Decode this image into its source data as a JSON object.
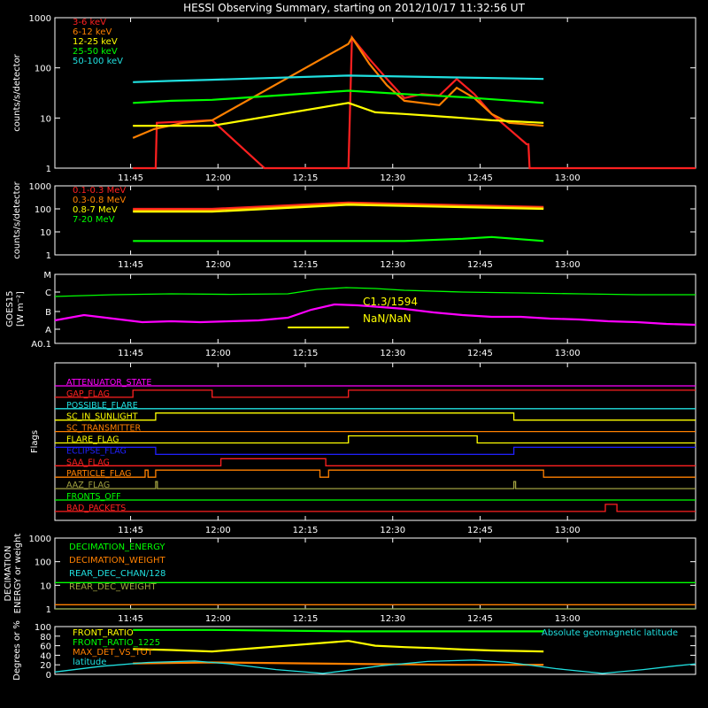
{
  "title": "HESSI Observing Summary, starting on 2012/10/17 11:32:56 UT",
  "colors": {
    "background": "#000000",
    "axis": "#ffffff",
    "red": "#ff2020",
    "orange": "#ff8000",
    "yellow": "#ffff00",
    "green": "#00ff00",
    "cyan": "#20e0e0",
    "magenta": "#ff00ff",
    "blue": "#2020ff",
    "olive": "#a0a040",
    "darkred": "#ff3030"
  },
  "time_axis": {
    "range_minutes_since_1132": [
      0,
      110
    ],
    "tick_labels": [
      "11:45",
      "12:00",
      "12:15",
      "12:30",
      "12:45",
      "13:00"
    ],
    "tick_minutes": [
      13,
      28,
      43,
      58,
      73,
      88
    ]
  },
  "chart_data": [
    {
      "type": "line",
      "name": "count-rates",
      "ylabel": "counts/s/detector",
      "yscale": "log",
      "ylim": [
        1,
        1000
      ],
      "y_tick_labels": [
        "1",
        "10",
        "100",
        "1000"
      ],
      "y_tick_values": [
        1,
        10,
        100,
        1000
      ],
      "series": [
        {
          "name": "3-6 keV",
          "color": "red",
          "x": [
            13.4,
            17.3,
            17.5,
            27.0,
            36,
            50.4,
            51,
            54,
            57,
            60,
            63,
            66,
            69,
            72,
            75,
            78,
            81,
            81.3,
            81.5,
            110
          ],
          "y": [
            1,
            1,
            8,
            9,
            1,
            1,
            400,
            150,
            60,
            25,
            30,
            28,
            60,
            30,
            12,
            6,
            3,
            3,
            1,
            1
          ]
        },
        {
          "name": "6-12 keV",
          "color": "orange",
          "x": [
            13.4,
            17.0,
            22,
            27.0,
            50.4,
            51,
            54,
            57,
            60,
            63,
            66,
            69,
            72,
            75,
            78,
            83.9
          ],
          "y": [
            4,
            6,
            8,
            9,
            300,
            400,
            120,
            45,
            22,
            20,
            18,
            40,
            25,
            12,
            8,
            7
          ]
        },
        {
          "name": "12-25 keV",
          "color": "yellow",
          "x": [
            13.4,
            20,
            27.0,
            50.4,
            55,
            60,
            65,
            70,
            75,
            83.9
          ],
          "y": [
            7.0,
            7.0,
            7.0,
            20,
            13,
            12,
            11,
            10,
            9,
            8
          ]
        },
        {
          "name": "25-50 keV",
          "color": "green",
          "x": [
            13.4,
            20,
            27.0,
            50.4,
            60,
            70,
            83.9
          ],
          "y": [
            20,
            22,
            23,
            35,
            30,
            26,
            20
          ]
        },
        {
          "name": "50-100 keV",
          "color": "cyan",
          "x": [
            13.4,
            20,
            27.0,
            50.4,
            83.9
          ],
          "y": [
            52,
            55,
            58,
            70,
            60
          ]
        }
      ]
    },
    {
      "type": "line",
      "name": "high-energy-rates",
      "ylabel": "counts/s/detector",
      "yscale": "log",
      "ylim": [
        1,
        1000
      ],
      "y_tick_labels": [
        "1",
        "10",
        "100",
        "1000"
      ],
      "y_tick_values": [
        1,
        10,
        100,
        1000
      ],
      "series": [
        {
          "name": "0.1-0.3 MeV",
          "color": "red",
          "x": [
            13.4,
            27.0,
            50.4,
            83.9
          ],
          "y": [
            100,
            100,
            190,
            120
          ]
        },
        {
          "name": "0.3-0.8 MeV",
          "color": "orange",
          "x": [
            13.4,
            27.0,
            50.4,
            83.9
          ],
          "y": [
            85,
            85,
            170,
            110
          ]
        },
        {
          "name": "0.8-7 MeV",
          "color": "yellow",
          "x": [
            13.4,
            27.0,
            50.4,
            83.9
          ],
          "y": [
            75,
            75,
            150,
            100
          ]
        },
        {
          "name": "7-20 MeV",
          "color": "green",
          "x": [
            13.4,
            27.0,
            50.4,
            60,
            70,
            75,
            83.9
          ],
          "y": [
            4,
            4,
            4,
            4,
            5,
            6,
            4
          ]
        }
      ]
    },
    {
      "type": "line",
      "name": "goes",
      "ylabel": "GOES15",
      "ylabel2": "[W m⁻²]",
      "ylim_classes": [
        "A0.1",
        "A",
        "B",
        "C",
        "M"
      ],
      "annotations": [
        "C1.3/1594",
        "NaN/NaN"
      ],
      "series": [
        {
          "name": "long-channel",
          "color": "green",
          "x": [
            0,
            10,
            20,
            30,
            40,
            45,
            50,
            55,
            60,
            70,
            80,
            90,
            100,
            110
          ],
          "y": [
            0.85,
            0.95,
            1.0,
            0.97,
            1.0,
            1.25,
            1.35,
            1.3,
            1.2,
            1.1,
            1.05,
            1.0,
            0.95,
            0.95
          ]
        },
        {
          "name": "short-channel",
          "color": "magenta",
          "x": [
            0,
            5,
            10,
            15,
            20,
            25,
            30,
            35,
            40,
            44,
            48,
            52,
            56,
            60,
            65,
            70,
            75,
            80,
            85,
            90,
            95,
            100,
            105,
            110
          ],
          "y": [
            -0.5,
            -0.2,
            -0.4,
            -0.6,
            -0.55,
            -0.6,
            -0.55,
            -0.5,
            -0.35,
            0.1,
            0.4,
            0.35,
            0.25,
            0.15,
            -0.05,
            -0.2,
            -0.3,
            -0.3,
            -0.4,
            -0.45,
            -0.55,
            -0.6,
            -0.7,
            -0.75
          ]
        }
      ]
    },
    {
      "type": "line",
      "name": "flags",
      "ylabel": "Flags",
      "flags": [
        {
          "label": "ATTENUATOR_STATE",
          "color": "magenta",
          "x": [
            0,
            110
          ],
          "y": [
            0,
            0
          ]
        },
        {
          "label": "GAP_FLAG",
          "color": "red",
          "x": [
            0,
            13.4,
            13.4,
            27.0,
            27.0,
            50.4,
            50.4,
            110
          ],
          "y": [
            0,
            0,
            1,
            1,
            0,
            0,
            1,
            1
          ]
        },
        {
          "label": "POSSIBLE_FLARE",
          "color": "cyan",
          "x": [
            0,
            110
          ],
          "y": [
            0,
            0
          ]
        },
        {
          "label": "SC_IN_SUNLIGHT",
          "color": "yellow",
          "x": [
            0,
            17.3,
            17.3,
            78.8,
            78.8,
            110
          ],
          "y": [
            0,
            0,
            1,
            1,
            0,
            0
          ]
        },
        {
          "label": "SC_TRANSMITTER",
          "color": "orange",
          "x": [
            0,
            110
          ],
          "y": [
            0,
            0
          ]
        },
        {
          "label": "FLARE_FLAG",
          "color": "yellow",
          "x": [
            0,
            50.4,
            50.4,
            72.5,
            72.5,
            110
          ],
          "y": [
            0,
            0,
            1,
            1,
            0,
            0
          ]
        },
        {
          "label": "ECLIPSE_FLAG",
          "color": "blue",
          "x": [
            0,
            17.3,
            17.3,
            78.8,
            78.8,
            110
          ],
          "y": [
            1,
            1,
            0,
            0,
            1,
            1
          ]
        },
        {
          "label": "SAA_FLAG",
          "color": "red",
          "x": [
            0,
            28.5,
            28.5,
            46.5,
            46.5,
            110
          ],
          "y": [
            0,
            0,
            1,
            1,
            0,
            0
          ]
        },
        {
          "label": "PARTICLE_FLAG",
          "color": "orange",
          "x": [
            0,
            15.5,
            15.5,
            16,
            16,
            17.3,
            17.3,
            45.5,
            45.5,
            47,
            47,
            50.4,
            50.4,
            83.9,
            83.9,
            110
          ],
          "y": [
            0,
            0,
            1,
            1,
            0,
            0,
            1,
            1,
            0,
            0,
            1,
            1,
            1,
            1,
            0,
            0
          ]
        },
        {
          "label": "AAZ_FLAG",
          "color": "olive",
          "x": [
            0,
            17.3,
            17.3,
            17.6,
            17.6,
            78.8,
            78.8,
            79.1,
            79.1,
            110
          ],
          "y": [
            0,
            0,
            1,
            1,
            0,
            0,
            1,
            1,
            0,
            0
          ]
        },
        {
          "label": "FRONTS_OFF",
          "color": "green",
          "x": [
            0,
            110
          ],
          "y": [
            0,
            0
          ]
        },
        {
          "label": "BAD_PACKETS",
          "color": "red",
          "x": [
            0,
            94.5,
            94.5,
            96.5,
            96.5,
            110
          ],
          "y": [
            0,
            0,
            1,
            1,
            0,
            0
          ]
        }
      ]
    },
    {
      "type": "line",
      "name": "decimation",
      "ylabel": "DECIMATION",
      "ylabel2": "ENERGY or weight",
      "yscale": "log",
      "ylim": [
        1,
        1000
      ],
      "y_tick_labels": [
        "1",
        "10",
        "100",
        "1000"
      ],
      "y_tick_values": [
        1,
        10,
        100,
        1000
      ],
      "series": [
        {
          "name": "DECIMATION_ENERGY",
          "color": "green",
          "x": [
            0,
            110
          ],
          "y": [
            13,
            13
          ]
        },
        {
          "name": "DECIMATION_WEIGHT",
          "color": "orange",
          "x": [
            0,
            110
          ],
          "y": [
            1.5,
            1.5
          ]
        },
        {
          "name": "REAR_DEC_CHAN/128",
          "color": "cyan",
          "x": [
            0,
            110
          ],
          "y": [
            1,
            1
          ]
        },
        {
          "name": "REAR_DEC_WEIGHT",
          "color": "olive",
          "x": [
            0,
            110
          ],
          "y": [
            1,
            1
          ]
        }
      ]
    },
    {
      "type": "line",
      "name": "ratios",
      "ylabel": "Degrees or %",
      "ylim": [
        0,
        100
      ],
      "y_tick_labels": [
        "0",
        "20",
        "40",
        "60",
        "80",
        "100"
      ],
      "y_tick_values": [
        0,
        20,
        40,
        60,
        80,
        100
      ],
      "annotations": [
        "Absolute geomagnetic latitude"
      ],
      "series": [
        {
          "name": "FRONT_RATIO",
          "color": "yellow",
          "x": [
            13.4,
            20,
            27.0,
            50.4,
            55,
            60,
            65,
            70,
            75,
            83.9
          ],
          "y": [
            53,
            51,
            48,
            70,
            60,
            57,
            55,
            52,
            50,
            48
          ]
        },
        {
          "name": "FRONT_RATIO_1225",
          "color": "green",
          "x": [
            13.4,
            27.0,
            50.4,
            83.9
          ],
          "y": [
            93,
            93,
            90,
            90
          ]
        },
        {
          "name": "MAX_DET_VS_TOT",
          "color": "orange",
          "x": [
            13.4,
            27.0,
            50.4,
            60,
            70,
            83.9
          ],
          "y": [
            23,
            25,
            22,
            21,
            20,
            20
          ]
        },
        {
          "name": "latitude",
          "color": "cyan",
          "x": [
            0,
            8,
            16,
            24,
            30,
            38,
            46,
            50,
            56,
            64,
            72,
            78,
            86,
            94,
            101,
            106,
            110
          ],
          "y": [
            5,
            17,
            25,
            28,
            22,
            10,
            2,
            8,
            18,
            27,
            30,
            25,
            12,
            2,
            10,
            17,
            22
          ]
        }
      ]
    }
  ]
}
